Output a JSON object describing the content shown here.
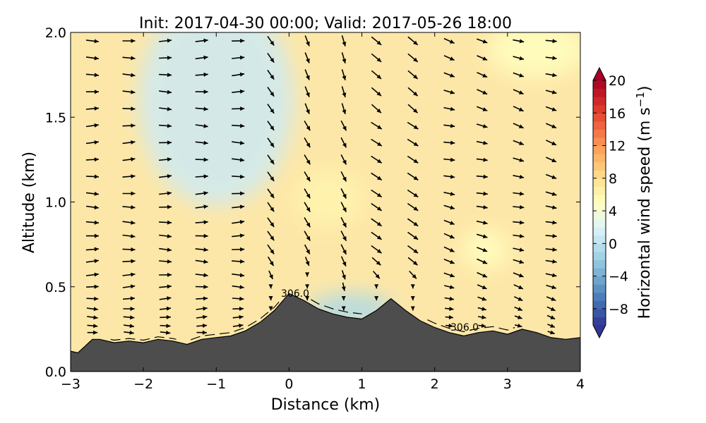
{
  "chart_data": {
    "type": "contourf",
    "title": "Init: 2017-04-30 00:00; Valid: 2017-05-26 18:00",
    "xlabel": "Distance (km)",
    "ylabel": "Altitude (km)",
    "xlim": [
      -3,
      4
    ],
    "ylim": [
      0.0,
      2.0
    ],
    "x_ticks": [
      -3,
      -2,
      -1,
      0,
      1,
      2,
      3,
      4
    ],
    "x_tick_labels": [
      "−3",
      "−2",
      "−1",
      "0",
      "1",
      "2",
      "3",
      "4"
    ],
    "y_ticks": [
      0.0,
      0.5,
      1.0,
      1.5,
      2.0
    ],
    "y_tick_labels": [
      "0.0",
      "0.5",
      "1.0",
      "1.5",
      "2.0"
    ],
    "colorbar": {
      "label_main": "Horizontal wind speed (m s",
      "label_sup": "−1",
      "label_close": ")",
      "range": [
        -10,
        20
      ],
      "ticks": [
        -8,
        -4,
        0,
        4,
        8,
        12,
        16,
        20
      ],
      "tick_labels": [
        "−8",
        "−4",
        "0",
        "4",
        "8",
        "12",
        "16",
        "20"
      ],
      "colormap": "RdYlBu_r"
    },
    "terrain": {
      "x": [
        -3.0,
        -2.9,
        -2.8,
        -2.7,
        -2.6,
        -2.4,
        -2.2,
        -2.0,
        -1.8,
        -1.6,
        -1.4,
        -1.2,
        -1.0,
        -0.8,
        -0.6,
        -0.4,
        -0.2,
        0.0,
        0.2,
        0.4,
        0.6,
        0.8,
        1.0,
        1.2,
        1.4,
        1.6,
        1.8,
        2.0,
        2.2,
        2.4,
        2.6,
        2.8,
        3.0,
        3.2,
        3.4,
        3.6,
        3.8,
        4.0
      ],
      "elevation": [
        0.12,
        0.11,
        0.15,
        0.19,
        0.19,
        0.17,
        0.18,
        0.17,
        0.19,
        0.18,
        0.16,
        0.19,
        0.2,
        0.21,
        0.24,
        0.29,
        0.36,
        0.46,
        0.42,
        0.37,
        0.34,
        0.32,
        0.31,
        0.36,
        0.43,
        0.36,
        0.3,
        0.26,
        0.23,
        0.21,
        0.23,
        0.24,
        0.22,
        0.25,
        0.23,
        0.2,
        0.19,
        0.2
      ],
      "color": "#4d4d4d"
    },
    "theta_contour_label_1": "306.0",
    "theta_contour_label_2": "306.0",
    "wind_vector_columns_x": [
      -2.7,
      -2.2,
      -1.7,
      -1.2,
      -0.7,
      -0.25,
      0.25,
      0.75,
      1.2,
      1.7,
      2.2,
      2.65,
      3.15,
      3.6
    ],
    "wind_vector_levels_km": [
      0.23,
      0.27,
      0.32,
      0.37,
      0.43,
      0.5,
      0.57,
      0.65,
      0.72,
      0.8,
      0.88,
      0.97,
      1.05,
      1.15,
      1.25,
      1.35,
      1.45,
      1.55,
      1.65,
      1.75,
      1.85,
      1.95
    ],
    "speed_contours_m_s": [
      {
        "cx": 0.55,
        "cy": 1.02,
        "value": 6
      },
      {
        "cx": 2.7,
        "cy": 0.72,
        "value": 5
      },
      {
        "cx": 3.4,
        "cy": 1.9,
        "value": 5
      },
      {
        "cx": -1.0,
        "cy": 1.6,
        "value": 1
      },
      {
        "cx": 0.85,
        "cy": 0.37,
        "value": -1
      }
    ]
  }
}
